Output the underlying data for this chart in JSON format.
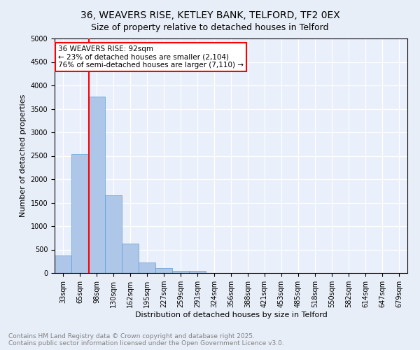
{
  "title1": "36, WEAVERS RISE, KETLEY BANK, TELFORD, TF2 0EX",
  "title2": "Size of property relative to detached houses in Telford",
  "xlabel": "Distribution of detached houses by size in Telford",
  "ylabel": "Number of detached properties",
  "categories": [
    "33sqm",
    "65sqm",
    "98sqm",
    "130sqm",
    "162sqm",
    "195sqm",
    "227sqm",
    "259sqm",
    "291sqm",
    "324sqm",
    "356sqm",
    "388sqm",
    "421sqm",
    "453sqm",
    "485sqm",
    "518sqm",
    "550sqm",
    "582sqm",
    "614sqm",
    "647sqm",
    "679sqm"
  ],
  "values": [
    380,
    2530,
    3760,
    1650,
    620,
    230,
    100,
    45,
    45,
    0,
    0,
    0,
    0,
    0,
    0,
    0,
    0,
    0,
    0,
    0,
    0
  ],
  "bar_color": "#aec6e8",
  "bar_edge_color": "#5a9fd4",
  "bar_width": 1.0,
  "redline_x": 1.55,
  "redline_color": "red",
  "annotation_text": "36 WEAVERS RISE: 92sqm\n← 23% of detached houses are smaller (2,104)\n76% of semi-detached houses are larger (7,110) →",
  "annotation_box_color": "white",
  "annotation_box_edge_color": "red",
  "ylim": [
    0,
    5000
  ],
  "yticks": [
    0,
    500,
    1000,
    1500,
    2000,
    2500,
    3000,
    3500,
    4000,
    4500,
    5000
  ],
  "bg_color": "#e8eef8",
  "plot_bg_color": "#eaf0fb",
  "grid_color": "white",
  "footer_line1": "Contains HM Land Registry data © Crown copyright and database right 2025.",
  "footer_line2": "Contains public sector information licensed under the Open Government Licence v3.0.",
  "title_fontsize": 10,
  "subtitle_fontsize": 9,
  "axis_label_fontsize": 8,
  "tick_fontsize": 7,
  "footer_fontsize": 6.5,
  "annotation_fontsize": 7.5
}
